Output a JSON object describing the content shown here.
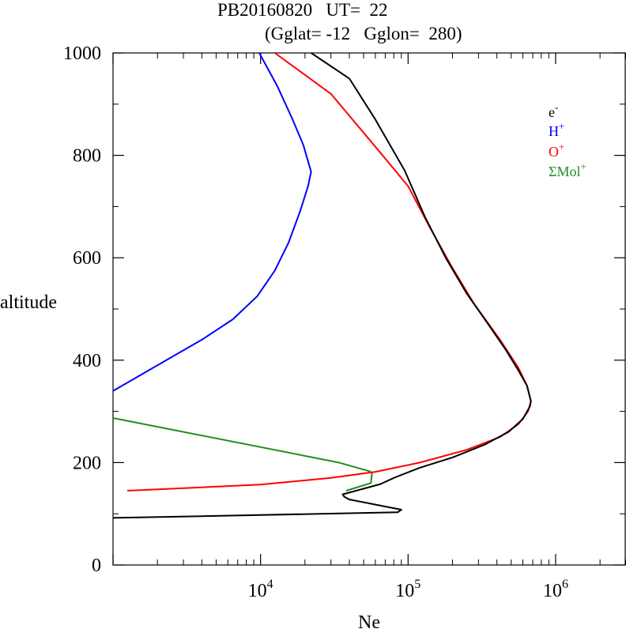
{
  "title": {
    "line1": "PB20160820   UT=  22",
    "line2": "(Gglat= -12   Gglon=  280)"
  },
  "chart_data": {
    "type": "line",
    "title": "PB20160820   UT=  22",
    "subtitle": "(Gglat= -12   Gglon=  280)",
    "xlabel": "Ne",
    "ylabel": "altitude",
    "xscale": "log",
    "xlim": [
      1000,
      3000000
    ],
    "ylim": [
      0,
      1000
    ],
    "yticks": [
      0,
      200,
      400,
      600,
      800,
      1000
    ],
    "ytick_labels": [
      "0",
      "200",
      "400",
      "600",
      "800",
      "1000"
    ],
    "xticks": [
      10000,
      100000,
      1000000
    ],
    "xtick_labels": [
      {
        "base": "10",
        "exp": "4"
      },
      {
        "base": "10",
        "exp": "5"
      },
      {
        "base": "10",
        "exp": "6"
      }
    ],
    "grid": false,
    "legend_position": "top-right",
    "series": [
      {
        "name": "e",
        "name_sup": "-",
        "color": "#000000",
        "points": [
          [
            1000,
            92
          ],
          [
            85000,
            103
          ],
          [
            90000,
            108
          ],
          [
            40000,
            128
          ],
          [
            37000,
            133
          ],
          [
            36000,
            138
          ],
          [
            65000,
            158
          ],
          [
            80000,
            170
          ],
          [
            120000,
            190
          ],
          [
            200000,
            210
          ],
          [
            330000,
            235
          ],
          [
            480000,
            260
          ],
          [
            600000,
            285
          ],
          [
            670000,
            310
          ],
          [
            680000,
            320
          ],
          [
            640000,
            350
          ],
          [
            560000,
            380
          ],
          [
            460000,
            420
          ],
          [
            350000,
            470
          ],
          [
            250000,
            530
          ],
          [
            180000,
            600
          ],
          [
            130000,
            680
          ],
          [
            95000,
            770
          ],
          [
            60000,
            870
          ],
          [
            40000,
            950
          ],
          [
            22000,
            1000
          ]
        ]
      },
      {
        "name": "H",
        "name_sup": "+",
        "color": "#0000ff",
        "points": [
          [
            1000,
            340
          ],
          [
            2000,
            390
          ],
          [
            4000,
            440
          ],
          [
            6500,
            480
          ],
          [
            9500,
            525
          ],
          [
            12500,
            575
          ],
          [
            15500,
            630
          ],
          [
            18500,
            690
          ],
          [
            21000,
            740
          ],
          [
            22000,
            768
          ],
          [
            19500,
            820
          ],
          [
            16500,
            870
          ],
          [
            13000,
            935
          ],
          [
            9800,
            1000
          ]
        ]
      },
      {
        "name": "O",
        "name_sup": "+",
        "color": "#ff0000",
        "points": [
          [
            1250,
            145
          ],
          [
            10000,
            157
          ],
          [
            30000,
            170
          ],
          [
            60000,
            182
          ],
          [
            120000,
            200
          ],
          [
            250000,
            225
          ],
          [
            420000,
            250
          ],
          [
            560000,
            275
          ],
          [
            650000,
            300
          ],
          [
            680000,
            320
          ],
          [
            640000,
            350
          ],
          [
            560000,
            385
          ],
          [
            420000,
            440
          ],
          [
            280000,
            510
          ],
          [
            200000,
            580
          ],
          [
            140000,
            660
          ],
          [
            100000,
            740
          ],
          [
            55000,
            830
          ],
          [
            30000,
            920
          ],
          [
            12500,
            1000
          ]
        ]
      },
      {
        "name": "ΣMol",
        "name_sup": "+",
        "color": "#228b22",
        "points": [
          [
            1000,
            287
          ],
          [
            34000,
            200
          ],
          [
            55000,
            183
          ],
          [
            57000,
            180
          ],
          [
            56000,
            160
          ],
          [
            38000,
            145
          ]
        ]
      }
    ]
  }
}
